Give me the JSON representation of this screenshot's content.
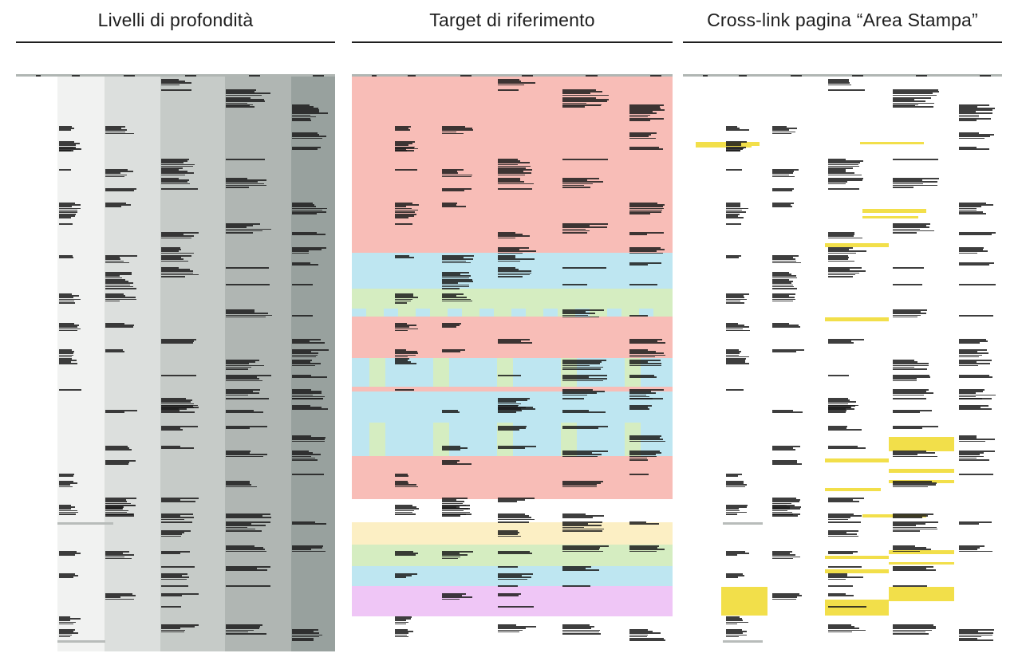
{
  "panels": [
    {
      "title": "Livelli di profondità",
      "variant": "depth",
      "column_colors": [
        "#f1f2f1",
        "#dcdfdd",
        "#c6cbc8",
        "#b0b6b3",
        "#98a19e"
      ]
    },
    {
      "title": "Target di riferimento",
      "variant": "target",
      "band_colors": {
        "red": "#f8bdb7",
        "blue": "#bee6f1",
        "green": "#d5edc1",
        "yellow": "#fcefc4",
        "purple": "#efc6f6"
      }
    },
    {
      "title": "Cross-link pagina “Area Stampa”",
      "variant": "crosslink",
      "highlight_color": "#f2df4a"
    }
  ]
}
